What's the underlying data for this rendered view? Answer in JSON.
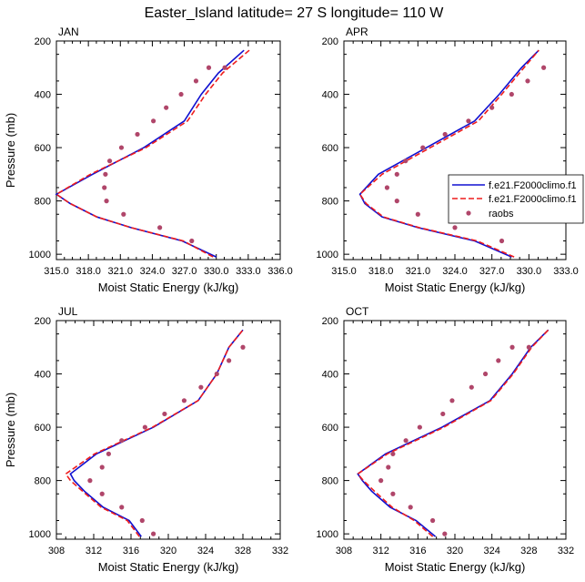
{
  "figure": {
    "title": "Easter_Island  latitude= 27 S longitude= 110 W"
  },
  "colors": {
    "model1": "#1010d0",
    "model2": "#ee1c1c",
    "raobs": "#b0466a",
    "frame": "#000000"
  },
  "legend": {
    "placement": "right of APR panel",
    "entries": [
      "f.e21.F2000climo.f1",
      "f.e21.F2000climo.f1",
      "raobs"
    ]
  },
  "chart_data": [
    {
      "type": "line",
      "panel": "JAN",
      "title": "JAN",
      "xlabel": "Moist Static Energy (kJ/kg)",
      "ylabel": "Pressure (mb)",
      "xlim": [
        315,
        336
      ],
      "xticks": [
        315,
        318,
        321,
        324,
        327,
        330,
        333,
        336
      ],
      "xtick_labels": [
        "315.0",
        "318.0",
        "321.0",
        "324.0",
        "327.0",
        "330.0",
        "333.0",
        "336.0"
      ],
      "ylim": [
        1020,
        200
      ],
      "yticks": [
        200,
        400,
        600,
        800,
        1000
      ],
      "ytick_labels": [
        "200",
        "400",
        "600",
        "800",
        "1000"
      ],
      "series": [
        {
          "name": "f.e21.F2000climo.f1",
          "style": "solid",
          "x": [
            330.0,
            326.8,
            322.0,
            318.8,
            316.3,
            315.0,
            318.4,
            323.2,
            327.0,
            328.6,
            330.2,
            332.6
          ],
          "y": [
            1010,
            950,
            900,
            860,
            810,
            775,
            700,
            600,
            500,
            400,
            320,
            235
          ]
        },
        {
          "name": "f.e21.F2000climo.f1",
          "style": "dashed",
          "x": [
            329.7,
            326.9,
            322.0,
            318.8,
            316.3,
            315.0,
            318.2,
            323.4,
            327.3,
            329.0,
            330.6,
            333.1
          ],
          "y": [
            1010,
            950,
            900,
            860,
            810,
            775,
            700,
            600,
            500,
            400,
            320,
            235
          ]
        },
        {
          "name": "raobs",
          "style": "markers",
          "x": [
            327.7,
            324.7,
            321.3,
            319.7,
            319.5,
            319.6,
            320.0,
            321.1,
            322.6,
            324.1,
            325.3,
            326.7,
            328.1,
            329.3,
            330.8
          ],
          "y": [
            950,
            900,
            850,
            800,
            750,
            700,
            650,
            600,
            550,
            500,
            450,
            400,
            350,
            300,
            300
          ]
        }
      ]
    },
    {
      "type": "line",
      "panel": "APR",
      "title": "APR",
      "xlabel": "Moist Static Energy (kJ/kg)",
      "ylabel": "",
      "xlim": [
        315,
        333
      ],
      "xticks": [
        315,
        318,
        321,
        324,
        327,
        330,
        333
      ],
      "xtick_labels": [
        "315.0",
        "318.0",
        "321.0",
        "324.0",
        "327.0",
        "330.0",
        "333.0"
      ],
      "ylim": [
        1020,
        200
      ],
      "yticks": [
        200,
        400,
        600,
        800,
        1000
      ],
      "ytick_labels": [
        "200",
        "400",
        "600",
        "800",
        "1000"
      ],
      "series": [
        {
          "name": "f.e21.F2000climo.f1",
          "style": "solid",
          "x": [
            328.6,
            325.6,
            321.0,
            318.1,
            316.7,
            316.3,
            317.8,
            321.7,
            325.6,
            327.6,
            329.4,
            330.8
          ],
          "y": [
            1010,
            950,
            900,
            860,
            810,
            775,
            700,
            600,
            500,
            400,
            300,
            235
          ]
        },
        {
          "name": "f.e21.F2000climo.f1",
          "style": "dashed",
          "x": [
            328.8,
            325.8,
            321.1,
            318.2,
            316.8,
            316.3,
            318.1,
            322.0,
            325.9,
            327.8,
            329.6,
            330.8
          ],
          "y": [
            1010,
            950,
            900,
            860,
            810,
            775,
            700,
            600,
            500,
            400,
            300,
            235
          ]
        },
        {
          "name": "raobs",
          "style": "markers",
          "x": [
            327.8,
            324.0,
            321.0,
            319.3,
            318.5,
            319.3,
            320.0,
            321.4,
            323.2,
            325.1,
            327.0,
            328.6,
            329.9,
            331.2
          ],
          "y": [
            950,
            900,
            850,
            800,
            750,
            700,
            650,
            600,
            550,
            500,
            450,
            400,
            350,
            300
          ]
        }
      ]
    },
    {
      "type": "line",
      "panel": "JUL",
      "title": "JUL",
      "xlabel": "Moist Static Energy (kJ/kg)",
      "ylabel": "Pressure (mb)",
      "xlim": [
        308,
        332
      ],
      "xticks": [
        308,
        312,
        316,
        320,
        324,
        328,
        332
      ],
      "xtick_labels": [
        "308",
        "312",
        "316",
        "320",
        "324",
        "328",
        "332"
      ],
      "ylim": [
        1020,
        200
      ],
      "yticks": [
        200,
        400,
        600,
        800,
        1000
      ],
      "ytick_labels": [
        "200",
        "400",
        "600",
        "800",
        "1000"
      ],
      "series": [
        {
          "name": "f.e21.F2000climo.f1",
          "style": "solid",
          "x": [
            317.1,
            315.8,
            313.0,
            311.0,
            309.9,
            309.5,
            312.3,
            318.4,
            323.2,
            325.2,
            326.5,
            328.0
          ],
          "y": [
            1010,
            950,
            900,
            840,
            800,
            775,
            700,
            600,
            500,
            400,
            300,
            235
          ]
        },
        {
          "name": "f.e21.F2000climo.f1",
          "style": "dashed",
          "x": [
            316.9,
            315.6,
            312.8,
            310.8,
            309.5,
            309.0,
            312.1,
            318.3,
            323.2,
            325.2,
            326.5,
            328.0
          ],
          "y": [
            1010,
            950,
            900,
            840,
            800,
            775,
            700,
            600,
            500,
            400,
            300,
            235
          ]
        },
        {
          "name": "raobs",
          "style": "markers",
          "x": [
            318.4,
            317.2,
            315.0,
            312.9,
            311.6,
            312.9,
            313.6,
            315.0,
            317.5,
            319.6,
            321.7,
            323.5,
            325.2,
            326.5,
            328.0
          ],
          "y": [
            1000,
            950,
            900,
            850,
            800,
            750,
            700,
            650,
            600,
            550,
            500,
            450,
            400,
            350,
            300
          ]
        }
      ]
    },
    {
      "type": "line",
      "panel": "OCT",
      "title": "OCT",
      "xlabel": "Moist Static Energy (kJ/kg)",
      "ylabel": "",
      "xlim": [
        308,
        332
      ],
      "xticks": [
        308,
        312,
        316,
        320,
        324,
        328,
        332
      ],
      "xtick_labels": [
        "308",
        "312",
        "316",
        "320",
        "324",
        "328",
        "332"
      ],
      "ylim": [
        1020,
        200
      ],
      "yticks": [
        200,
        400,
        600,
        800,
        1000
      ],
      "ytick_labels": [
        "200",
        "400",
        "600",
        "800",
        "1000"
      ],
      "series": [
        {
          "name": "f.e21.F2000climo.f1",
          "style": "solid",
          "x": [
            317.9,
            315.8,
            313.0,
            311.0,
            310.0,
            309.5,
            312.5,
            318.6,
            323.8,
            326.2,
            328.2,
            330.1
          ],
          "y": [
            1010,
            950,
            900,
            840,
            800,
            775,
            700,
            600,
            500,
            400,
            300,
            235
          ]
        },
        {
          "name": "f.e21.F2000climo.f1",
          "style": "dashed",
          "x": [
            317.6,
            315.6,
            313.2,
            311.3,
            310.1,
            309.5,
            312.7,
            318.8,
            323.9,
            326.3,
            328.3,
            330.1
          ],
          "y": [
            1010,
            950,
            900,
            840,
            800,
            775,
            700,
            600,
            500,
            400,
            300,
            235
          ]
        },
        {
          "name": "raobs",
          "style": "markers",
          "x": [
            318.9,
            317.6,
            315.2,
            313.3,
            312.0,
            312.8,
            313.3,
            314.7,
            316.2,
            318.7,
            319.7,
            321.8,
            323.3,
            324.7,
            326.2,
            328.0
          ],
          "y": [
            1000,
            950,
            900,
            850,
            800,
            750,
            700,
            650,
            600,
            550,
            500,
            450,
            400,
            350,
            300,
            300
          ]
        }
      ]
    }
  ]
}
